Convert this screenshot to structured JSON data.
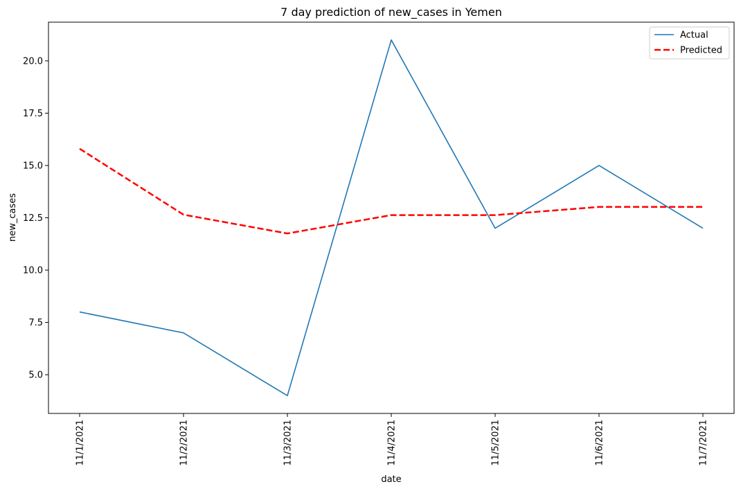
{
  "chart_data": {
    "type": "line",
    "title": "7 day prediction of new_cases in Yemen",
    "xlabel": "date",
    "ylabel": "new_cases",
    "categories": [
      "11/1/2021",
      "11/2/2021",
      "11/3/2021",
      "11/4/2021",
      "11/5/2021",
      "11/6/2021",
      "11/7/2021"
    ],
    "series": [
      {
        "name": "Actual",
        "color": "#1f77b4",
        "style": "solid",
        "values": [
          8,
          7,
          4,
          21,
          12,
          15,
          12
        ]
      },
      {
        "name": "Predicted",
        "color": "#ff0000",
        "style": "dashed",
        "values": [
          15.8,
          12.65,
          11.75,
          12.63,
          12.63,
          13.02,
          13.02
        ]
      }
    ],
    "ylim": [
      3.15,
      21.85
    ],
    "yticks": [
      "5.0",
      "7.5",
      "10.0",
      "12.5",
      "15.0",
      "17.5",
      "20.0"
    ],
    "legend": "top-right",
    "grid": false
  }
}
